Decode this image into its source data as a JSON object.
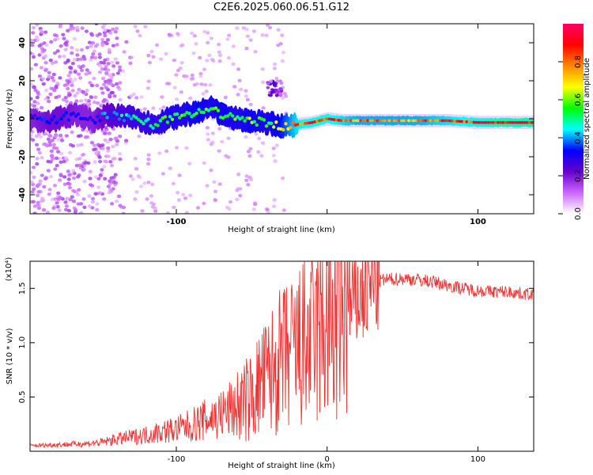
{
  "title": "C2E6.2025.060.06.51.G12",
  "chart_data": [
    {
      "type": "heatmap",
      "xlabel": "Height of straight line (km)",
      "ylabel": "Frequency (Hz)",
      "xlim": [
        -197,
        137
      ],
      "ylim": [
        -50,
        50
      ],
      "xticks": [
        -100,
        0,
        100
      ],
      "xtick_labels": [
        "-100",
        "",
        "100"
      ],
      "yticks": [
        -40,
        -20,
        0,
        20,
        40
      ],
      "ytick_labels": [
        "-40",
        "-20",
        "0",
        "20",
        "40"
      ],
      "colorbar": {
        "label": "Normalized spectral amplitude",
        "range": [
          0,
          1
        ],
        "ticks": [
          0.0,
          0.2,
          0.4,
          0.6,
          0.8
        ],
        "tick_labels": [
          "0.0",
          "0.2",
          "0.4",
          "0.6",
          "0.8"
        ],
        "colormap": [
          "#ffffff",
          "#cc66ff",
          "#6600cc",
          "#0000ff",
          "#00ffff",
          "#00ff00",
          "#ffff00",
          "#ff8800",
          "#ff0000",
          "#ff0066"
        ]
      },
      "series": [
        {
          "x": [
            -195,
            -185,
            -175,
            -165,
            -155,
            -145,
            -135,
            -125,
            -115,
            -105,
            -95,
            -85,
            -78,
            -70,
            -60,
            -50,
            -40,
            -30,
            -20,
            -10,
            0,
            10,
            20,
            40,
            60,
            80,
            100,
            120,
            137
          ],
          "y": [
            0,
            -2,
            1,
            2,
            -1,
            2,
            1,
            0,
            -3,
            0,
            2,
            3,
            6,
            2,
            0,
            -1,
            -2,
            -4,
            -3,
            -2,
            0,
            -1,
            -1,
            -1,
            -1,
            -1,
            -2,
            -2,
            -2
          ],
          "amplitude": [
            0.3,
            0.35,
            0.35,
            0.3,
            0.3,
            0.4,
            0.45,
            0.5,
            0.5,
            0.55,
            0.55,
            0.6,
            0.55,
            0.6,
            0.55,
            0.6,
            0.55,
            0.65,
            0.85,
            0.9,
            0.9,
            0.85,
            0.8,
            0.8,
            0.8,
            0.85,
            0.9,
            0.95,
            0.95
          ]
        }
      ]
    },
    {
      "type": "line",
      "xlabel": "Height of straight line (km)",
      "ylabel": "SNR (10 * v/v)",
      "y_multiplier": "(x10⁴)",
      "xlim": [
        -197,
        137
      ],
      "ylim": [
        0,
        17500
      ],
      "xticks": [
        -100,
        0,
        100
      ],
      "xtick_labels": [
        "-100",
        "0",
        "100"
      ],
      "yticks": [
        5000,
        10000,
        15000
      ],
      "ytick_labels": [
        "0.5",
        "1.0",
        "1.5"
      ],
      "color": "#ee3333",
      "series": [
        {
          "x": [
            -197,
            -180,
            -160,
            -150,
            -140,
            -130,
            -120,
            -110,
            -100,
            -90,
            -80,
            -70,
            -60,
            -50,
            -45,
            -40,
            -35,
            -30,
            -25,
            -20,
            -15,
            -10,
            -5,
            0,
            5,
            10,
            15,
            20,
            25,
            30,
            35,
            40,
            50,
            60,
            70,
            80,
            90,
            100,
            110,
            120,
            130,
            137
          ],
          "y": [
            500,
            600,
            700,
            800,
            1100,
            1300,
            1500,
            1800,
            2000,
            2400,
            2900,
            3400,
            4100,
            5000,
            6000,
            6800,
            7500,
            8300,
            8700,
            9200,
            9800,
            10300,
            10900,
            11300,
            11800,
            12500,
            13200,
            14000,
            14600,
            15300,
            15700,
            15800,
            15900,
            15800,
            15600,
            15300,
            15000,
            14800,
            14700,
            14700,
            14500,
            14500
          ]
        }
      ]
    }
  ]
}
